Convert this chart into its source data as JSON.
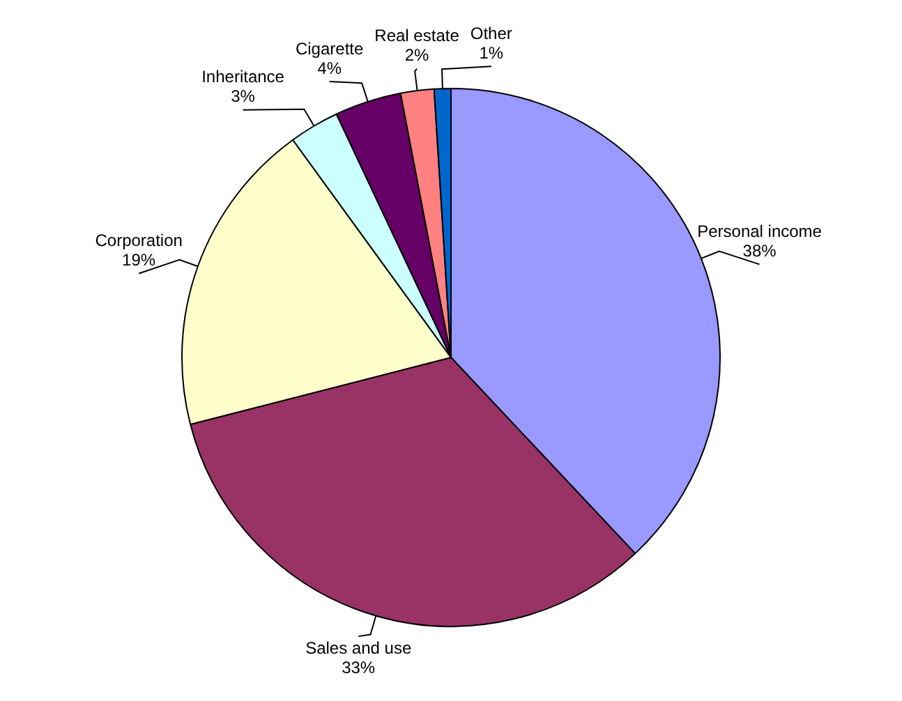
{
  "chart_data": {
    "type": "pie",
    "categories": [
      "Personal income",
      "Sales and use",
      "Corporation",
      "Inheritance",
      "Cigarette",
      "Real estate",
      "Other"
    ],
    "values": [
      38,
      33,
      19,
      3,
      4,
      2,
      1
    ],
    "value_labels": [
      "38%",
      "33%",
      "19%",
      "3%",
      "4%",
      "2%",
      "1%"
    ],
    "colors": [
      "#9999ff",
      "#993366",
      "#ffffcc",
      "#ccffff",
      "#660066",
      "#ff8080",
      "#0066cc"
    ],
    "legend": false
  }
}
